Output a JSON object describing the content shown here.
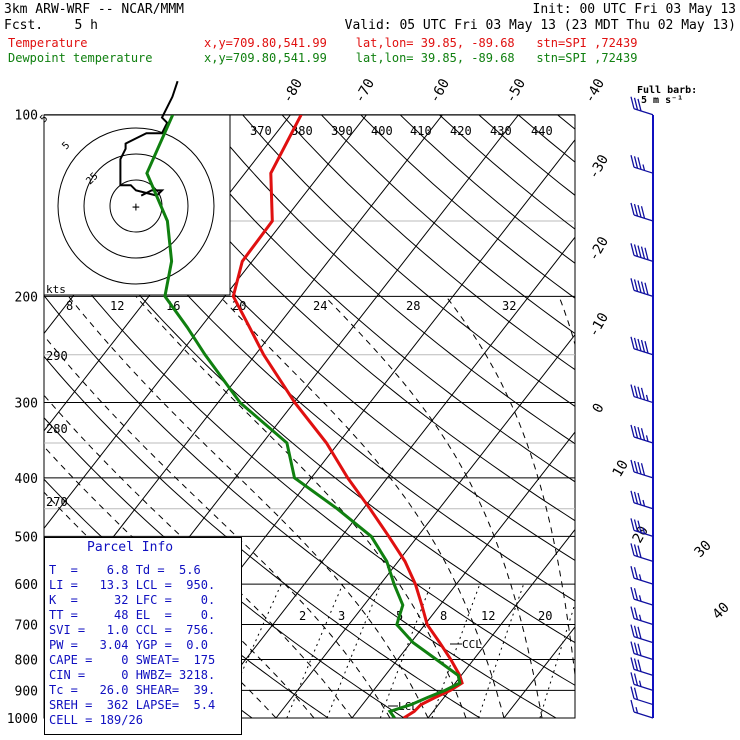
{
  "header": {
    "model": "3km ARW-WRF -- NCAR/MMM",
    "init": "Init: 00 UTC Fri 03 May 13",
    "fcst": "Fcst.    5 h",
    "valid": "Valid: 05 UTC Fri 03 May 13 (23 MDT Thu 02 May 13)",
    "temp_label": "Temperature",
    "dew_label": "Dewpoint temperature",
    "loc_line": "x,y=709.80,541.99    lat,lon= 39.85, -89.68   stn=SPI ,72439",
    "barb_title": "Full barb:",
    "barb_units": "5 m s⁻¹",
    "colors": {
      "temp": "#e01010",
      "dew": "#108010",
      "blue": "#1010c0",
      "wind": "#1010a0"
    }
  },
  "parcel": {
    "title": "Parcel Info",
    "rows": [
      "T  =    6.8 Td =  5.6",
      "LI =   13.3 LCL =  950.",
      "K  =     32 LFC =    0.",
      "TT =     48 EL  =    0.",
      "SVI =   1.0 CCL =  756.",
      "PW =   3.04 YGP =  0.0",
      "CAPE =    0 SWEAT=  175",
      "CIN =     0 HWBZ= 3218.",
      "Tc =   26.0 SHEAR=  39.",
      "SREH =  362 LAPSE=  5.4",
      "CELL = 189/26"
    ]
  },
  "chart_data": {
    "type": "skew-t",
    "pressure_labels": [
      "100",
      "200",
      "300",
      "400",
      "500",
      "600",
      "700",
      "800",
      "900",
      "1000"
    ],
    "pressure_levels_hPa": [
      100,
      200,
      300,
      400,
      500,
      600,
      700,
      800,
      900,
      1000
    ],
    "isotherm_labels": [
      "-80",
      "-70",
      "-60",
      "-50",
      "-40",
      "-30",
      "-20",
      "-10",
      "0",
      "10",
      "20",
      "30",
      "40"
    ],
    "theta_labels": [
      "370",
      "380",
      "390",
      "400",
      "410",
      "420",
      "430",
      "440",
      "290",
      "280",
      "270"
    ],
    "mixing_ratio_labels": [
      "2",
      "3",
      "5",
      "8",
      "12",
      "20"
    ],
    "hodograph_rings": [
      "8",
      "12",
      "16",
      "20",
      "24",
      "28",
      "32"
    ],
    "hodograph_small_labels": [
      "5",
      "25",
      "kts"
    ],
    "annotations": [
      "LCL",
      "CCL"
    ],
    "series": [
      {
        "name": "Temperature",
        "pressure": [
          1000,
          975,
          950,
          925,
          900,
          875,
          850,
          800,
          750,
          700,
          650,
          600,
          550,
          500,
          450,
          400,
          350,
          300,
          250,
          225,
          200,
          175,
          150,
          125,
          100
        ],
        "temperature_C": [
          6.8,
          7.5,
          7.7,
          8.8,
          10.1,
          10.9,
          9.8,
          7.0,
          3.8,
          0.3,
          -2.4,
          -5.4,
          -9.1,
          -13.8,
          -19.1,
          -25.2,
          -31.6,
          -39.9,
          -48.9,
          -53.6,
          -58.9,
          -61.3,
          -61.5,
          -66.6,
          -68.6
        ]
      },
      {
        "name": "Dewpoint temperature",
        "pressure": [
          1000,
          975,
          950,
          925,
          900,
          875,
          850,
          800,
          750,
          700,
          650,
          600,
          550,
          500,
          450,
          400,
          350,
          300,
          250,
          225,
          200,
          175,
          150,
          125,
          100
        ],
        "temperature_C": [
          5.6,
          4.3,
          6.4,
          7.8,
          9.4,
          10.6,
          9.6,
          5.1,
          0.3,
          -3.7,
          -4.9,
          -8.2,
          -11.5,
          -16.1,
          -23.4,
          -32.2,
          -36.8,
          -47.1,
          -56.6,
          -61.8,
          -67.9,
          -70.6,
          -75.3,
          -82.9,
          -85.5
        ]
      }
    ],
    "wind_barbs": {
      "pressure": [
        1000,
        950,
        900,
        850,
        800,
        750,
        700,
        650,
        600,
        550,
        500,
        450,
        400,
        350,
        300,
        250,
        200,
        175,
        150,
        125,
        100
      ],
      "speed_kt": [
        15,
        20,
        25,
        30,
        30,
        30,
        25,
        25,
        25,
        30,
        35,
        35,
        40,
        45,
        45,
        50,
        50,
        50,
        40,
        35,
        30
      ]
    },
    "hodograph": {
      "u_kt": [
        2,
        6,
        10,
        8,
        0,
        -2,
        -6,
        -6,
        -6,
        -4,
        -4,
        0,
        4,
        8,
        10,
        12,
        10,
        12,
        14,
        16
      ],
      "v_kt": [
        4,
        6,
        6,
        4,
        6,
        8,
        8,
        14,
        18,
        22,
        24,
        26,
        28,
        28,
        28,
        32,
        34,
        38,
        42,
        48
      ]
    }
  }
}
